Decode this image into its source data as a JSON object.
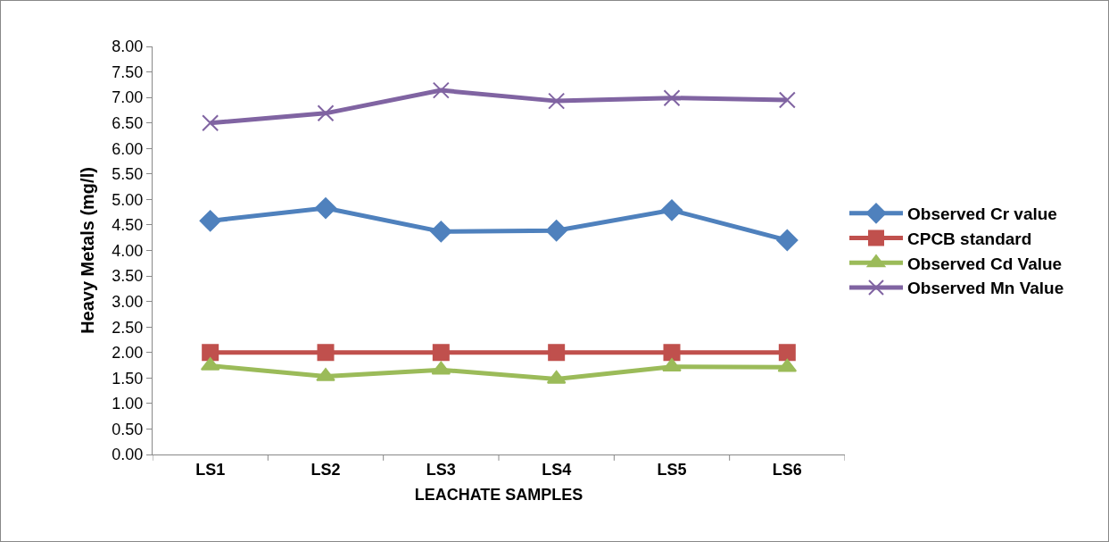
{
  "chart_data": {
    "type": "line",
    "xlabel": "LEACHATE SAMPLES",
    "ylabel": "Heavy Metals (mg/l)",
    "categories": [
      "LS1",
      "LS2",
      "LS3",
      "LS4",
      "LS5",
      "LS6"
    ],
    "series": [
      {
        "name": "Observed Cr value",
        "color": "#4f81bd",
        "marker": "diamond",
        "values": [
          4.58,
          4.83,
          4.37,
          4.39,
          4.79,
          4.2
        ]
      },
      {
        "name": "CPCB standard",
        "color": "#c0504d",
        "marker": "square",
        "values": [
          2.0,
          2.0,
          2.0,
          2.0,
          2.0,
          2.0
        ]
      },
      {
        "name": "Observed Cd Value",
        "color": "#9bbb59",
        "marker": "triangle",
        "values": [
          1.74,
          1.53,
          1.66,
          1.48,
          1.72,
          1.71
        ]
      },
      {
        "name": "Observed Mn Value",
        "color": "#8064a2",
        "marker": "cross",
        "values": [
          6.5,
          6.69,
          7.14,
          6.93,
          6.99,
          6.95
        ]
      }
    ],
    "ylim": [
      0,
      8
    ],
    "yticks": [
      {
        "value": 0,
        "label": "0.00"
      },
      {
        "value": 0.5,
        "label": "0.50"
      },
      {
        "value": 1,
        "label": "1.00"
      },
      {
        "value": 1.5,
        "label": "1.50"
      },
      {
        "value": 2,
        "label": "2.00"
      },
      {
        "value": 2.5,
        "label": "2.50"
      },
      {
        "value": 3,
        "label": "3.00"
      },
      {
        "value": 3.5,
        "label": "3.50"
      },
      {
        "value": 4,
        "label": "4.00"
      },
      {
        "value": 4.5,
        "label": "4.50"
      },
      {
        "value": 5,
        "label": "5.00"
      },
      {
        "value": 5.5,
        "label": "5.50"
      },
      {
        "value": 6,
        "label": "6.00"
      },
      {
        "value": 6.5,
        "label": "6.50"
      },
      {
        "value": 7,
        "label": "7.00"
      },
      {
        "value": 7.5,
        "label": "7.50"
      },
      {
        "value": 8,
        "label": "8.00"
      }
    ],
    "grid": false,
    "legend": "right",
    "line_style": "solid"
  }
}
